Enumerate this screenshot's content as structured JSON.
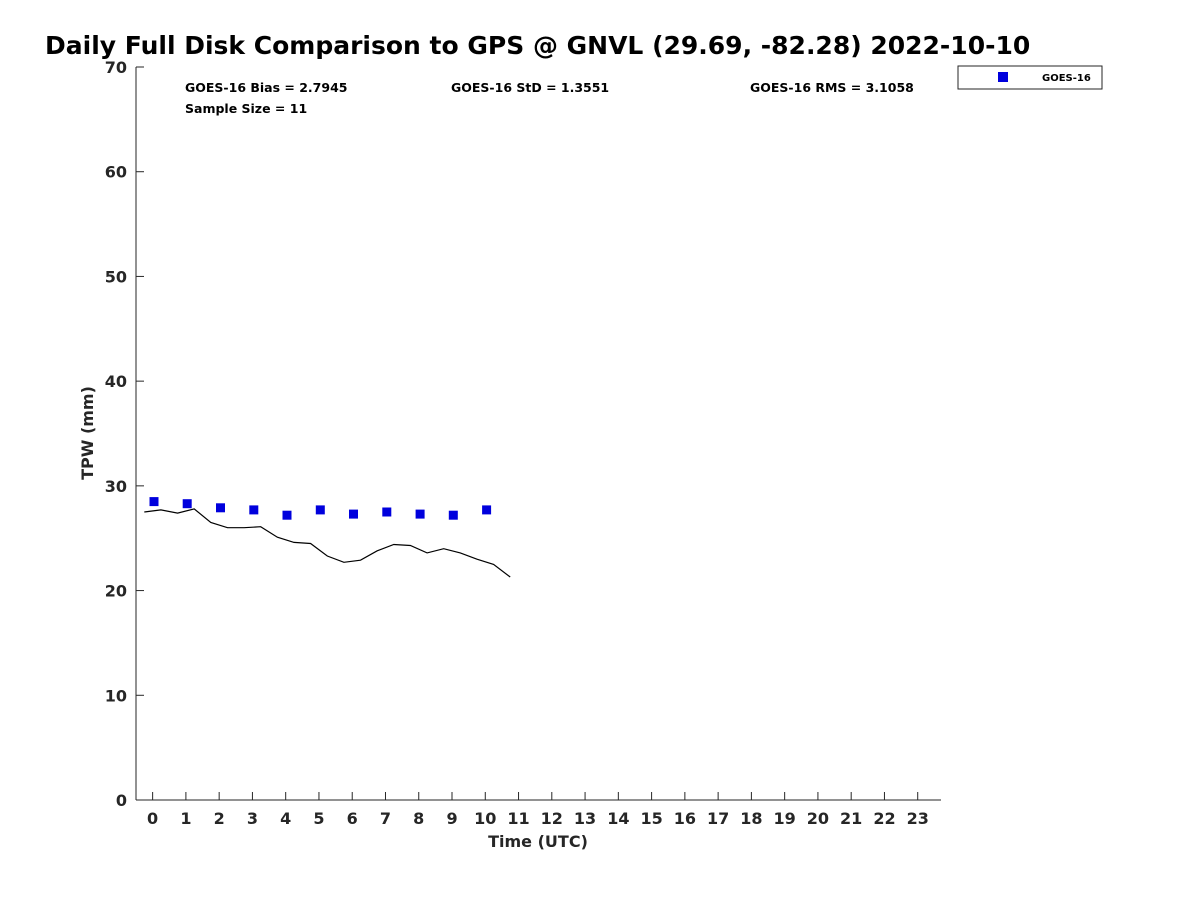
{
  "chart_data": {
    "type": "scatter",
    "title": "Daily Full Disk Comparison to GPS @ GNVL (29.69, -82.28) 2022-10-10",
    "xlabel": "Time (UTC)",
    "ylabel": "TPW (mm)",
    "xlim": [
      -0.5,
      23.7
    ],
    "ylim": [
      0,
      70
    ],
    "xticks": [
      0,
      1,
      2,
      3,
      4,
      5,
      6,
      7,
      8,
      9,
      10,
      11,
      12,
      13,
      14,
      15,
      16,
      17,
      18,
      19,
      20,
      21,
      22,
      23
    ],
    "yticks": [
      0,
      10,
      20,
      30,
      40,
      50,
      60,
      70
    ],
    "grid": false,
    "legend": {
      "position": "top-right",
      "entries": [
        "GOES-16"
      ]
    },
    "stats": [
      {
        "text": "GOES-16 Bias = 2.7945"
      },
      {
        "text": "GOES-16 StD = 1.3551"
      },
      {
        "text": "GOES-16 RMS = 3.1058"
      },
      {
        "text": "Sample Size = 11"
      }
    ],
    "series": [
      {
        "name": "GOES-16",
        "kind": "scatter",
        "marker": "square",
        "color": "#0000dd",
        "x": [
          0.04,
          1.04,
          2.04,
          3.04,
          4.04,
          5.04,
          6.04,
          7.04,
          8.04,
          9.04,
          10.04
        ],
        "y": [
          28.5,
          28.3,
          27.9,
          27.7,
          27.2,
          27.7,
          27.3,
          27.5,
          27.3,
          27.2,
          27.7
        ]
      },
      {
        "kind": "line",
        "color": "#000000",
        "x": [
          -0.25,
          0.25,
          0.75,
          1.25,
          1.75,
          2.25,
          2.75,
          3.25,
          3.75,
          4.25,
          4.75,
          5.25,
          5.75,
          6.25,
          6.75,
          7.25,
          7.75,
          8.25,
          8.75,
          9.25,
          9.75,
          10.25,
          10.75
        ],
        "y": [
          27.5,
          27.7,
          27.4,
          27.8,
          26.5,
          26.0,
          26.0,
          26.1,
          25.1,
          24.6,
          24.5,
          23.3,
          22.7,
          22.9,
          23.8,
          24.4,
          24.3,
          23.6,
          24.0,
          23.6,
          23.0,
          22.5,
          21.3
        ]
      }
    ]
  }
}
